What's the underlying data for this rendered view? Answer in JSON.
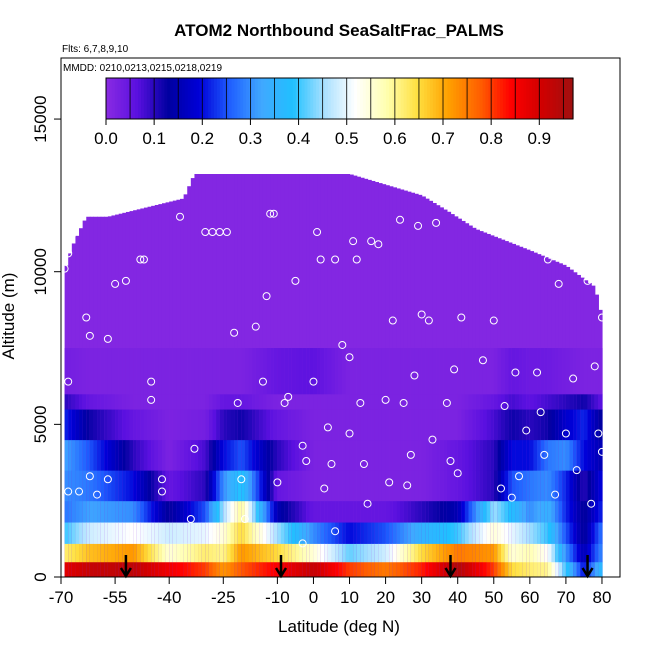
{
  "chart_data": {
    "type": "heatmap",
    "title": "ATOM2 Northbound SeaSaltFrac_PALMS",
    "flights_note": "Flts: 6,7,8,9,10",
    "dates_note": "MMDD: 0210,0213,0215,0218,0219",
    "xlabel": "Latitude (deg N)",
    "ylabel": "Altitude (m)",
    "xlim": [
      -70,
      85
    ],
    "ylim": [
      0,
      17000
    ],
    "x_ticks": [
      "-70",
      "-55",
      "-40",
      "-25",
      "-10",
      "0",
      "10",
      "20",
      "30",
      "40",
      "50",
      "60",
      "70",
      "80"
    ],
    "x_tick_values": [
      -70,
      -55,
      -40,
      -25,
      -10,
      0,
      10,
      20,
      30,
      40,
      50,
      60,
      70,
      80
    ],
    "y_ticks": [
      "0",
      "5000",
      "10000",
      "15000"
    ],
    "y_tick_values": [
      0,
      5000,
      10000,
      15000
    ],
    "colorbar": {
      "labels": [
        "0.0",
        "0.1",
        "0.2",
        "0.3",
        "0.4",
        "0.5",
        "0.6",
        "0.7",
        "0.8",
        "0.9"
      ],
      "values": [
        0.0,
        0.1,
        0.2,
        0.3,
        0.4,
        0.5,
        0.6,
        0.7,
        0.8,
        0.9
      ],
      "range": [
        0,
        0.97
      ],
      "colors": [
        "#8a2be2",
        "#5a10e0",
        "#0000a0",
        "#0000d8",
        "#2060ff",
        "#40a8ff",
        "#20c0ff",
        "#a8e0ff",
        "#ffffff",
        "#ffffb0",
        "#ffe040",
        "#ffa000",
        "#ff6000",
        "#ff0000",
        "#d00000",
        "#a01010"
      ]
    },
    "field": {
      "lat_range": [
        -69,
        80
      ],
      "ceiling_altitude": [
        [
          -69,
          10000
        ],
        [
          -67,
          10800
        ],
        [
          -63,
          11800
        ],
        [
          -57,
          11800
        ],
        [
          -36,
          12400
        ],
        [
          -33,
          13200
        ],
        [
          10,
          13200
        ],
        [
          30,
          12500
        ],
        [
          37,
          12000
        ],
        [
          45,
          11400
        ],
        [
          60,
          10700
        ],
        [
          70,
          10200
        ],
        [
          78,
          9500
        ],
        [
          80,
          8500
        ]
      ],
      "layers": [
        {
          "alt": [
            0,
            500
          ],
          "lat": [
            -69,
            -62,
            -50,
            -40,
            -30,
            -25,
            -20,
            -10,
            0,
            10,
            20,
            30,
            40,
            50,
            55,
            60,
            65,
            70,
            75,
            80
          ],
          "value": [
            0.88,
            0.92,
            0.93,
            0.86,
            0.8,
            0.72,
            0.78,
            0.85,
            0.92,
            0.8,
            0.75,
            0.82,
            0.95,
            0.8,
            0.65,
            0.62,
            0.6,
            0.4,
            0.2,
            0.38
          ]
        },
        {
          "alt": [
            500,
            1100
          ],
          "lat": [
            -69,
            -62,
            -50,
            -40,
            -30,
            -25,
            -20,
            -10,
            0,
            10,
            20,
            30,
            40,
            50,
            55,
            60,
            65,
            70,
            75,
            80
          ],
          "value": [
            0.62,
            0.68,
            0.72,
            0.55,
            0.62,
            0.6,
            0.72,
            0.65,
            0.55,
            0.42,
            0.48,
            0.65,
            0.75,
            0.72,
            0.55,
            0.58,
            0.52,
            0.3,
            0.15,
            0.3
          ]
        },
        {
          "alt": [
            1100,
            1800
          ],
          "lat": [
            -69,
            -62,
            -50,
            -40,
            -30,
            -25,
            -20,
            -10,
            0,
            10,
            20,
            30,
            40,
            50,
            55,
            60,
            65,
            70,
            75,
            80
          ],
          "value": [
            0.4,
            0.48,
            0.52,
            0.48,
            0.5,
            0.55,
            0.65,
            0.45,
            0.3,
            0.2,
            0.25,
            0.35,
            0.4,
            0.55,
            0.5,
            0.45,
            0.4,
            0.25,
            0.12,
            0.28
          ]
        },
        {
          "alt": [
            1800,
            2500
          ],
          "lat": [
            -69,
            -62,
            -50,
            -40,
            -30,
            -25,
            -20,
            -10,
            0,
            10,
            20,
            30,
            40,
            50,
            55,
            60,
            65,
            70,
            75,
            80
          ],
          "value": [
            0.28,
            0.32,
            0.3,
            0.12,
            0.25,
            0.45,
            0.6,
            0.15,
            0.05,
            0.05,
            0.05,
            0.1,
            0.15,
            0.45,
            0.38,
            0.3,
            0.35,
            0.22,
            0.12,
            0.22
          ]
        },
        {
          "alt": [
            2500,
            3500
          ],
          "lat": [
            -69,
            -62,
            -50,
            -40,
            -30,
            -25,
            -20,
            -10,
            0,
            10,
            20,
            30,
            40,
            50,
            55,
            60,
            65,
            70,
            75,
            80
          ],
          "value": [
            0.3,
            0.28,
            0.2,
            0.05,
            0.1,
            0.3,
            0.4,
            0.05,
            0.02,
            0.02,
            0.02,
            0.02,
            0.05,
            0.1,
            0.25,
            0.28,
            0.3,
            0.22,
            0.1,
            0.2
          ]
        },
        {
          "alt": [
            3500,
            4500
          ],
          "lat": [
            -69,
            -62,
            -50,
            -40,
            -30,
            -25,
            -20,
            -10,
            0,
            10,
            20,
            30,
            40,
            50,
            55,
            60,
            65,
            70,
            75,
            80
          ],
          "value": [
            0.32,
            0.25,
            0.1,
            0.02,
            0.08,
            0.2,
            0.25,
            0.1,
            0.02,
            0.02,
            0.02,
            0.02,
            0.05,
            0.1,
            0.2,
            0.2,
            0.28,
            0.3,
            0.2,
            0.15
          ]
        },
        {
          "alt": [
            4500,
            5500
          ],
          "lat": [
            -69,
            -62,
            -50,
            -40,
            -30,
            -25,
            -20,
            -10,
            0,
            10,
            20,
            30,
            40,
            50,
            55,
            60,
            65,
            70,
            75,
            80
          ],
          "value": [
            0.22,
            0.12,
            0.05,
            0.02,
            0.03,
            0.1,
            0.12,
            0.05,
            0.02,
            0.02,
            0.02,
            0.02,
            0.02,
            0.08,
            0.12,
            0.1,
            0.12,
            0.18,
            0.22,
            0.12
          ]
        },
        {
          "alt": [
            5500,
            6000
          ],
          "lat": [
            -69,
            -62,
            -50,
            -40,
            -30,
            -25,
            -20,
            -10,
            0,
            10,
            20,
            30,
            40,
            50,
            55,
            60,
            65,
            70,
            75,
            80
          ],
          "value": [
            0.1,
            0.05,
            0.02,
            0.02,
            0.02,
            0.05,
            0.05,
            0.02,
            0.02,
            0.02,
            0.02,
            0.02,
            0.02,
            0.05,
            0.08,
            0.06,
            0.08,
            0.1,
            0.12,
            0.06
          ]
        },
        {
          "alt": [
            6000,
            7500
          ],
          "lat": [
            -69,
            -62,
            -50,
            -40,
            -30,
            -25,
            -20,
            -10,
            0,
            10,
            20,
            30,
            40,
            50,
            55,
            60,
            65,
            70,
            75,
            80
          ],
          "value": [
            0.03,
            0.02,
            0.02,
            0.02,
            0.02,
            0.02,
            0.02,
            0.05,
            0.06,
            0.02,
            0.02,
            0.02,
            0.02,
            0.02,
            0.05,
            0.04,
            0.04,
            0.03,
            0.02,
            0.02
          ]
        }
      ],
      "background_value": 0.01
    },
    "sample_points_note": "white open circles mark flight sampling locations",
    "sample_points": [
      [
        -69,
        10100
      ],
      [
        -68,
        10600
      ],
      [
        -67,
        11200
      ],
      [
        -65,
        11800
      ],
      [
        -62,
        7900
      ],
      [
        -63,
        8500
      ],
      [
        -68,
        6400
      ],
      [
        -68,
        2800
      ],
      [
        -65,
        2800
      ],
      [
        -62,
        3300
      ],
      [
        -60,
        2700
      ],
      [
        -57,
        3200
      ],
      [
        -57,
        7800
      ],
      [
        -55,
        9600
      ],
      [
        -52,
        9700
      ],
      [
        -48,
        10400
      ],
      [
        -47,
        10400
      ],
      [
        -45,
        6400
      ],
      [
        -45,
        5800
      ],
      [
        -42,
        3200
      ],
      [
        -42,
        2800
      ],
      [
        -37,
        11800
      ],
      [
        -34,
        1900
      ],
      [
        -33,
        4200
      ],
      [
        -30,
        11300
      ],
      [
        -28,
        11300
      ],
      [
        -26,
        11300
      ],
      [
        -24,
        11300
      ],
      [
        -22,
        8000
      ],
      [
        -21,
        5700
      ],
      [
        -20,
        3200
      ],
      [
        -19,
        1900
      ],
      [
        -16,
        8200
      ],
      [
        -14,
        6400
      ],
      [
        -13,
        9200
      ],
      [
        -12,
        11900
      ],
      [
        -11,
        11900
      ],
      [
        -10,
        3100
      ],
      [
        -8,
        5700
      ],
      [
        -7,
        5900
      ],
      [
        -5,
        9700
      ],
      [
        -3,
        4300
      ],
      [
        -3,
        1100
      ],
      [
        -2,
        3800
      ],
      [
        0,
        6400
      ],
      [
        1,
        11300
      ],
      [
        2,
        10400
      ],
      [
        3,
        2900
      ],
      [
        4,
        4900
      ],
      [
        5,
        3700
      ],
      [
        6,
        1500
      ],
      [
        6,
        10400
      ],
      [
        8,
        7600
      ],
      [
        10,
        7200
      ],
      [
        10,
        4700
      ],
      [
        11,
        11000
      ],
      [
        12,
        10400
      ],
      [
        13,
        5700
      ],
      [
        14,
        3700
      ],
      [
        15,
        2400
      ],
      [
        16,
        11000
      ],
      [
        18,
        10900
      ],
      [
        20,
        5800
      ],
      [
        21,
        3100
      ],
      [
        22,
        8400
      ],
      [
        24,
        11700
      ],
      [
        25,
        5700
      ],
      [
        26,
        3000
      ],
      [
        27,
        4000
      ],
      [
        28,
        6600
      ],
      [
        29,
        11500
      ],
      [
        30,
        8600
      ],
      [
        32,
        8400
      ],
      [
        33,
        4500
      ],
      [
        34,
        11600
      ],
      [
        37,
        5700
      ],
      [
        38,
        3800
      ],
      [
        39,
        6800
      ],
      [
        40,
        3400
      ],
      [
        41,
        8500
      ],
      [
        47,
        7100
      ],
      [
        50,
        8400
      ],
      [
        52,
        2900
      ],
      [
        53,
        5600
      ],
      [
        55,
        2600
      ],
      [
        56,
        6700
      ],
      [
        57,
        3300
      ],
      [
        59,
        4800
      ],
      [
        62,
        6700
      ],
      [
        63,
        5400
      ],
      [
        64,
        4000
      ],
      [
        65,
        10400
      ],
      [
        67,
        2700
      ],
      [
        68,
        9600
      ],
      [
        70,
        4700
      ],
      [
        72,
        6500
      ],
      [
        73,
        3500
      ],
      [
        76,
        9700
      ],
      [
        77,
        2400
      ],
      [
        78,
        6900
      ],
      [
        79,
        4700
      ],
      [
        80,
        8500
      ],
      [
        80,
        4100
      ]
    ],
    "arrows_lat": [
      -52,
      -9,
      38,
      76
    ],
    "tick_marks_top_lat": -21
  }
}
